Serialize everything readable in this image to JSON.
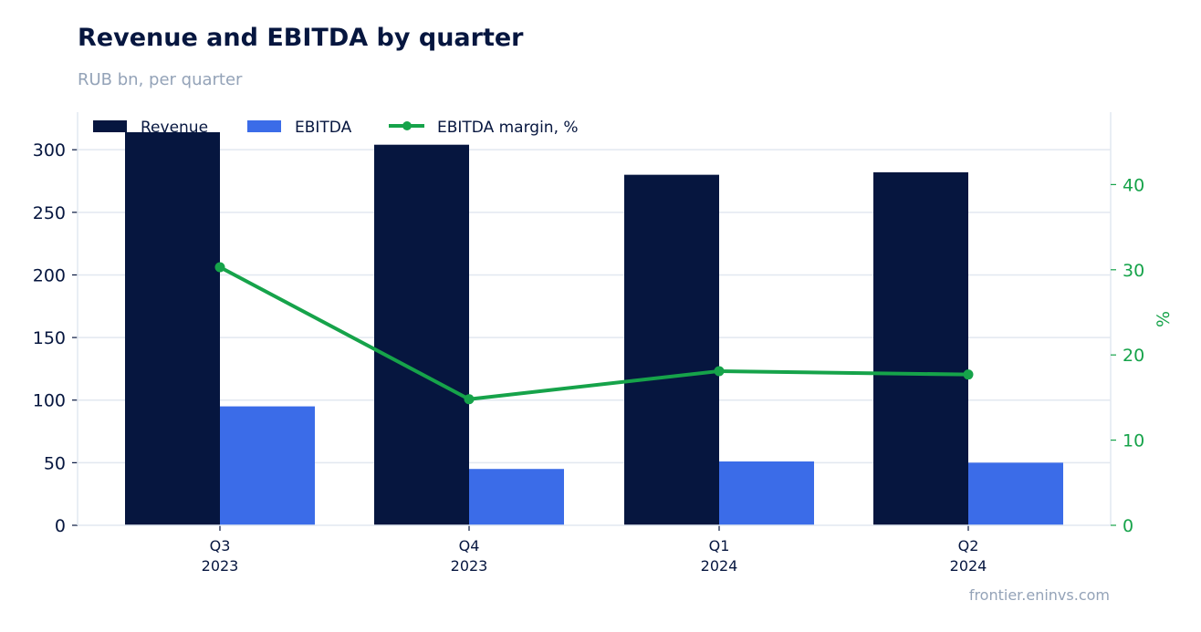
{
  "header": {
    "title": "Revenue and EBITDA by quarter",
    "subtitle": "RUB bn, per quarter"
  },
  "footer": {
    "source": "frontier.eninvs.com"
  },
  "colors": {
    "revenue": "#06163f",
    "ebitda": "#3b6ce8",
    "margin": "#16a34a",
    "grid": "#e2e8f0",
    "axis": "#06163f"
  },
  "chart_data": {
    "type": "bar",
    "categories": [
      [
        "Q3",
        "2023"
      ],
      [
        "Q4",
        "2023"
      ],
      [
        "Q1",
        "2024"
      ],
      [
        "Q2",
        "2024"
      ]
    ],
    "series": [
      {
        "name": "Revenue",
        "type": "bar",
        "axis": "left",
        "values": [
          314,
          304,
          280,
          282
        ]
      },
      {
        "name": "EBITDA",
        "type": "bar",
        "axis": "left",
        "values": [
          95,
          45,
          51,
          50
        ]
      },
      {
        "name": "EBITDA margin, %",
        "type": "line",
        "axis": "right",
        "values": [
          30.3,
          14.8,
          18.1,
          17.7
        ]
      }
    ],
    "y_left": {
      "label": "",
      "ylim": [
        0,
        330
      ],
      "ticks": [
        0,
        50,
        100,
        150,
        200,
        250,
        300
      ]
    },
    "y_right": {
      "label": "%",
      "ylim": [
        0,
        48.5
      ],
      "ticks": [
        0,
        10,
        20,
        30,
        40
      ]
    },
    "grid": true,
    "legend": "top-left"
  }
}
